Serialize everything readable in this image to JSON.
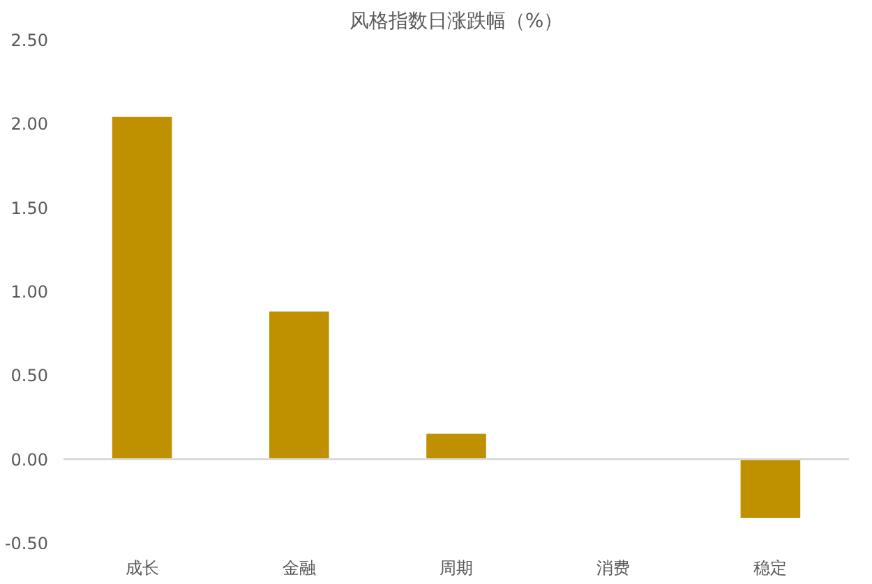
{
  "chart_data": {
    "type": "bar",
    "title": "风格指数日涨跌幅（%）",
    "categories": [
      "成长",
      "金融",
      "周期",
      "消费",
      "稳定"
    ],
    "values": [
      2.04,
      0.88,
      0.15,
      0.0,
      -0.35
    ],
    "color": "#bf9000",
    "ylim": [
      -0.5,
      2.5
    ],
    "yticks": [
      {
        "value": -0.5,
        "label": "-0.50"
      },
      {
        "value": 0,
        "label": "0.00"
      },
      {
        "value": 0.5,
        "label": "0.50"
      },
      {
        "value": 1,
        "label": "1.00"
      },
      {
        "value": 1.5,
        "label": "1.50"
      },
      {
        "value": 2,
        "label": "2.00"
      },
      {
        "value": 2.5,
        "label": "2.50"
      }
    ],
    "ref_lines": [
      {
        "axis": "y",
        "value": 0,
        "color": "#d9d9d9"
      }
    ],
    "grid": false
  }
}
